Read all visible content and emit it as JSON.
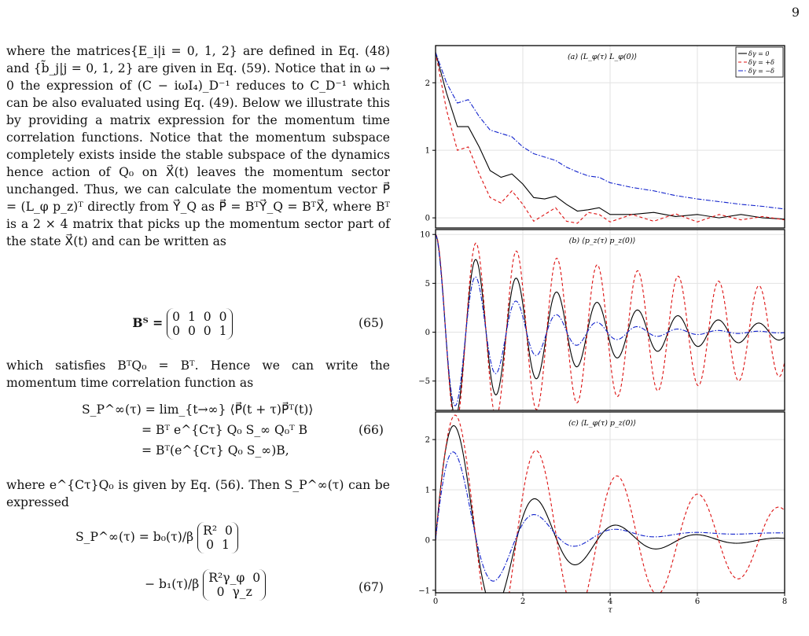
{
  "page_number": "9",
  "text": {
    "p1": "where the matrices{E_i|i = 0, 1, 2} are defined in Eq. (48) and {b̃_j|j = 0, 1, 2} are given in Eq. (59). Notice that in ω → 0 the expression of (C − iωI₄)_D⁻¹ reduces to C_D⁻¹ which can be also evaluated using Eq. (49). Below we illustrate this by providing a matrix expression for the momentum time correlation functions. Notice that the momentum subspace completely exists inside the stable subspace of the dynamics hence action of Q₀ on X⃗(t) leaves the momentum sector unchanged. Thus, we can calculate the momentum vector P⃗ = (L_φ  p_z)ᵀ directly from Y⃗_Q as P⃗ = BᵀY⃗_Q = BᵀX⃗, where Bᵀ is a 2 × 4 matrix that picks up the momentum sector part of the state X⃗(t) and can be written as",
    "eq65_lhs": "Bᵀ =",
    "eq65_row1": "0  1  0  0",
    "eq65_row2": "0  0  0  1",
    "eq65_num": "(65)",
    "p2": "which satisfies BᵀQ₀ = Bᵀ. Hence we can write the momentum time correlation function as",
    "eq66_l1": "S_P^∞(τ) = lim_{t→∞} ⟨P⃗(t + τ)P⃗ᵀ(t)⟩",
    "eq66_l2": "= Bᵀ e^{Cτ} Q₀ S_∞ Q₀ᵀ B",
    "eq66_l3": "= Bᵀ(e^{Cτ} Q₀ S_∞)B,",
    "eq66_num": "(66)",
    "p3": "where e^{Cτ}Q₀ is given by Eq. (56). Then S_P^∞(τ) can be expressed",
    "eq67_l1_lhs": "S_P^∞(τ) = b₀(τ)/β",
    "eq67_l1_r1": "R²  0",
    "eq67_l1_r2": "0  1",
    "eq67_l2_lhs": "− b₁(τ)/β",
    "eq67_l2_r1": "R²γ_φ  0",
    "eq67_l2_r2": "0  γ_z",
    "eq67_num": "(67)"
  },
  "chart_data": [
    {
      "type": "line",
      "title": "(a) ⟨L_φ(τ) L_φ(0)⟩",
      "xlim": [
        0,
        8
      ],
      "ylim": [
        -0.15,
        2.55
      ],
      "yticks": [
        0,
        1,
        2
      ],
      "grid": true,
      "legend": {
        "placement": "top-right",
        "entries": [
          "δγ = 0",
          "δγ = +δ",
          "δγ = −δ"
        ]
      },
      "x": [
        0,
        0.25,
        0.5,
        0.75,
        1.0,
        1.25,
        1.5,
        1.75,
        2.0,
        2.25,
        2.5,
        2.75,
        3.0,
        3.25,
        3.5,
        3.75,
        4.0,
        4.5,
        5.0,
        5.5,
        6.0,
        6.5,
        7.0,
        7.5,
        8.0
      ],
      "series": [
        {
          "name": "δγ = 0",
          "color": "#000000",
          "dash": "solid",
          "values": [
            2.45,
            1.85,
            1.35,
            1.35,
            1.05,
            0.7,
            0.6,
            0.65,
            0.5,
            0.3,
            0.28,
            0.32,
            0.2,
            0.1,
            0.12,
            0.15,
            0.05,
            0.05,
            0.08,
            0.02,
            0.05,
            0.0,
            0.05,
            0.0,
            -0.02
          ]
        },
        {
          "name": "δγ = +δ",
          "color": "#dd1111",
          "dash": "dashed",
          "values": [
            2.45,
            1.6,
            1.0,
            1.05,
            0.65,
            0.3,
            0.22,
            0.4,
            0.2,
            -0.05,
            0.05,
            0.15,
            -0.05,
            -0.08,
            0.08,
            0.05,
            -0.06,
            0.05,
            -0.05,
            0.06,
            -0.06,
            0.05,
            -0.03,
            0.02,
            -0.03
          ]
        },
        {
          "name": "δγ = −δ",
          "color": "#1122cc",
          "dash": "dashdot",
          "values": [
            2.45,
            2.0,
            1.7,
            1.75,
            1.5,
            1.3,
            1.25,
            1.2,
            1.05,
            0.95,
            0.9,
            0.85,
            0.75,
            0.68,
            0.62,
            0.6,
            0.52,
            0.45,
            0.4,
            0.33,
            0.28,
            0.24,
            0.2,
            0.17,
            0.13
          ]
        }
      ]
    },
    {
      "type": "line",
      "title": "(b) ⟨p_z(τ) p_z(0)⟩",
      "xlim": [
        0,
        8
      ],
      "ylim": [
        -8,
        10.5
      ],
      "yticks": [
        -5,
        0,
        5,
        10
      ],
      "grid": true,
      "curve_model": {
        "form": "A·exp(−k·τ)·cos(ω·τ)",
        "A": 10,
        "omega": 6.78,
        "series": [
          {
            "name": "δγ = 0",
            "k": 0.32,
            "color": "#000000",
            "dash": "solid"
          },
          {
            "name": "δγ = +δ",
            "k": 0.1,
            "color": "#dd1111",
            "dash": "dashed"
          },
          {
            "name": "δγ = −δ",
            "k": 0.62,
            "color": "#1122cc",
            "dash": "dashdot"
          }
        ]
      }
    },
    {
      "type": "line",
      "title": "(c) ⟨L_φ(τ) p_z(0)⟩",
      "xlim": [
        0,
        8
      ],
      "ylim": [
        -1.05,
        2.55
      ],
      "yticks": [
        -1,
        0,
        1,
        2
      ],
      "grid": true,
      "curve_model": {
        "form": "C·(1 − exp(−m·τ)) + A·exp(−k·τ)·sin(ω·τ)",
        "omega": 3.39,
        "series": [
          {
            "name": "δγ = 0",
            "A": 2.9,
            "k": 0.55,
            "C": 0.0,
            "m": 1,
            "color": "#000000",
            "dash": "solid"
          },
          {
            "name": "δγ = +δ",
            "A": 2.7,
            "k": 0.18,
            "C": 0.0,
            "m": 1,
            "color": "#dd1111",
            "dash": "dashed"
          },
          {
            "name": "δγ = −δ",
            "A": 2.4,
            "k": 0.75,
            "C": 0.15,
            "m": 0.3,
            "color": "#1122cc",
            "dash": "dashdot"
          }
        ]
      }
    }
  ],
  "axes": {
    "xticks": [
      "0",
      "2",
      "4",
      "6",
      "8"
    ],
    "xlabel": "τ"
  }
}
